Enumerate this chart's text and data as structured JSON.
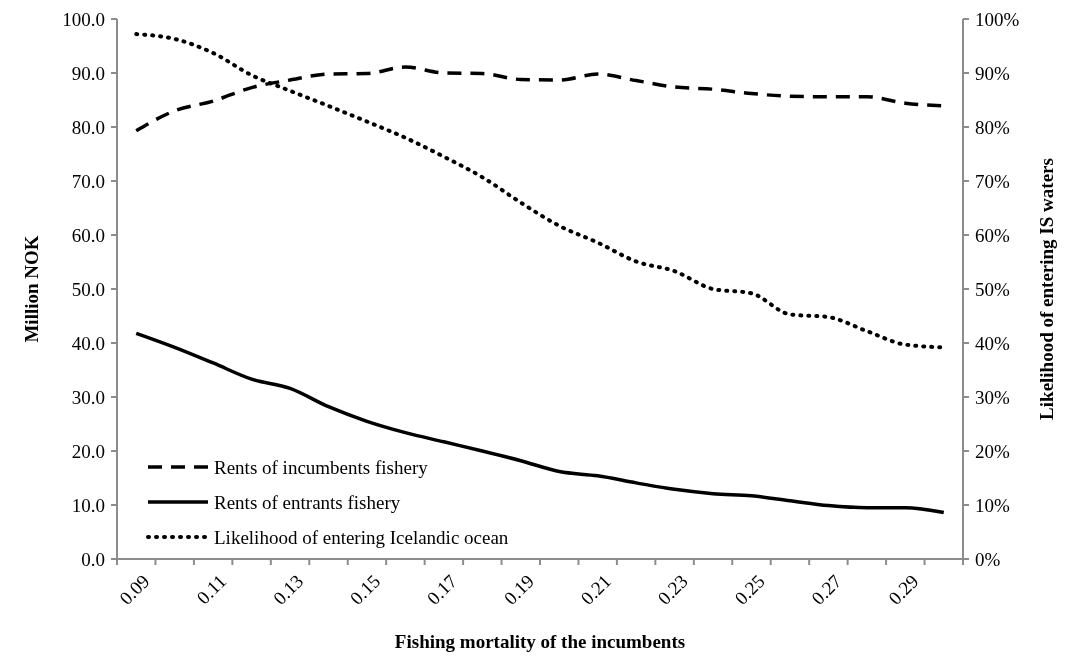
{
  "chart_data": {
    "type": "line",
    "xlabel": "Fishing mortality of the incumbents",
    "ylabel": "Million NOK",
    "y2label": "Likelihood of entering IS waters",
    "categories": [
      "0.09",
      null,
      "0.11",
      null,
      "0.13",
      null,
      "0.15",
      null,
      "0.17",
      null,
      "0.19",
      null,
      "0.21",
      null,
      "0.23",
      null,
      "0.25",
      null,
      "0.27",
      null,
      "0.29",
      null
    ],
    "series": [
      {
        "name": "Rents of incumbents fishery",
        "color": "#000000",
        "line_style": "dashed",
        "values": [
          79.3,
          83,
          84.8,
          87.3,
          88.7,
          89.8,
          89.9,
          91.1,
          90,
          89.9,
          88.8,
          88.7,
          89.8,
          88.6,
          87.4,
          87,
          86.2,
          85.7,
          85.6,
          85.6,
          84.4,
          83.9
        ]
      },
      {
        "name": "Rents of entrants fishery",
        "color": "#000000",
        "line_style": "solid",
        "values": [
          41.8,
          39.2,
          36.3,
          33.3,
          31.6,
          28.2,
          25.5,
          23.4,
          21.7,
          20.0,
          18.2,
          16.2,
          15.4,
          14.1,
          12.9,
          12.1,
          11.7,
          10.8,
          9.9,
          9.5,
          9.5,
          8.6
        ]
      },
      {
        "name": "Likelihood of entering Icelandic ocean",
        "color": "#000000",
        "line_style": "dotted",
        "axis": "y2",
        "values": [
          0.972,
          0.963,
          0.937,
          0.896,
          0.867,
          0.839,
          0.81,
          0.78,
          0.745,
          0.707,
          0.66,
          0.617,
          0.586,
          0.551,
          0.533,
          0.5,
          0.492,
          0.453,
          0.448,
          0.422,
          0.397,
          0.392
        ]
      }
    ],
    "ylim": [
      0,
      100
    ],
    "yticks": [
      {
        "value": 0,
        "label": "0.0"
      },
      {
        "value": 10,
        "label": "10.0"
      },
      {
        "value": 20,
        "label": "20.0"
      },
      {
        "value": 30,
        "label": "30.0"
      },
      {
        "value": 40,
        "label": "40.0"
      },
      {
        "value": 50,
        "label": "50.0"
      },
      {
        "value": 60,
        "label": "60.0"
      },
      {
        "value": 70,
        "label": "70.0"
      },
      {
        "value": 80,
        "label": "80.0"
      },
      {
        "value": 90,
        "label": "90.0"
      },
      {
        "value": 100,
        "label": "100.0"
      }
    ],
    "y2lim": [
      0,
      1
    ],
    "y2ticks": [
      {
        "value": 0,
        "label": "0%"
      },
      {
        "value": 0.1,
        "label": "10%"
      },
      {
        "value": 0.2,
        "label": "20%"
      },
      {
        "value": 0.3,
        "label": "30%"
      },
      {
        "value": 0.4,
        "label": "40%"
      },
      {
        "value": 0.5,
        "label": "50%"
      },
      {
        "value": 0.6,
        "label": "60%"
      },
      {
        "value": 0.7,
        "label": "70%"
      },
      {
        "value": 0.8,
        "label": "80%"
      },
      {
        "value": 0.9,
        "label": "90%"
      },
      {
        "value": 1,
        "label": "100%"
      }
    ],
    "grid": false,
    "legend": "bottom left"
  }
}
